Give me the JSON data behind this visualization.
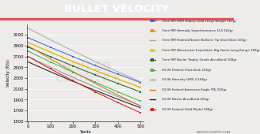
{
  "title": "BULLET VELOCITY",
  "title_bg": "#555555",
  "title_color": "#ffffff",
  "accent_color": "#e05555",
  "xlabel": "Yards",
  "ylabel": "Velocity (ft/s)",
  "plot_bg": "#eeecea",
  "yards": [
    0,
    100,
    200,
    300,
    400,
    500
  ],
  "series": [
    {
      "label": "7mm RM HSM Trophy-Gold 162gr Berger 162gr",
      "color": "#4466cc",
      "marker": "s",
      "dash": "solid",
      "values": [
        3050,
        2870,
        2698,
        2532,
        2372,
        2218
      ]
    },
    {
      "label": "7mm RM Hornady Superformance 154 162gr",
      "color": "#ff8800",
      "marker": "s",
      "dash": "solid",
      "values": [
        2960,
        2780,
        2606,
        2440,
        2280,
        2126
      ]
    },
    {
      "label": "7mm RM Federal-Nosler Ballistic Tip Vital-Shok 160gr",
      "color": "#aaaaaa",
      "marker": "none",
      "dash": "solid",
      "values": [
        3225,
        3010,
        2804,
        2606,
        2416,
        2233
      ]
    },
    {
      "label": "7mm RM Winchester Expedition Big Game Long Range 168gr",
      "color": "#ddcc00",
      "marker": "s",
      "dash": "solid",
      "values": [
        2960,
        2780,
        2607,
        2440,
        2280,
        2126
      ]
    },
    {
      "label": "7mm RM Nosler Trophy Grade AccuBond 168gr",
      "color": "#226622",
      "marker": "s",
      "dash": "solid",
      "values": [
        2875,
        2696,
        2524,
        2358,
        2198,
        2044
      ]
    },
    {
      "label": "30-06 Federal Vital-Shok 165gr",
      "color": "#44bb44",
      "marker": "s",
      "dash": "solid",
      "values": [
        2800,
        2600,
        2408,
        2222,
        2044,
        1874
      ]
    },
    {
      "label": "30-06 Hornady GMX 3 168gr",
      "color": "#999999",
      "marker": "none",
      "dash": "solid",
      "values": [
        2700,
        2502,
        2312,
        2130,
        1955,
        1787
      ]
    },
    {
      "label": "30-06 Federal American Eagle FMJ 150gr",
      "color": "#cc7733",
      "marker": "none",
      "dash": "solid",
      "values": [
        2900,
        2655,
        2421,
        2198,
        1985,
        1783
      ]
    },
    {
      "label": "30-06 Nosler AccuBond 200gr",
      "color": "#222222",
      "marker": "none",
      "dash": "solid",
      "values": [
        2600,
        2416,
        2239,
        2069,
        1906,
        1750
      ]
    },
    {
      "label": "30-06 Federal Gold Medal 168gr",
      "color": "#dd2222",
      "marker": "s",
      "dash": "solid",
      "values": [
        2700,
        2470,
        2250,
        2042,
        1844,
        1658
      ]
    }
  ],
  "ylim": [
    1500,
    3300
  ],
  "yticks": [
    1500,
    1700,
    1900,
    2100,
    2300,
    2500,
    2700,
    2900,
    3100
  ],
  "xticks": [
    0,
    100,
    200,
    300,
    400,
    500
  ],
  "footer": "SNIPERCOUNTRY.COM"
}
